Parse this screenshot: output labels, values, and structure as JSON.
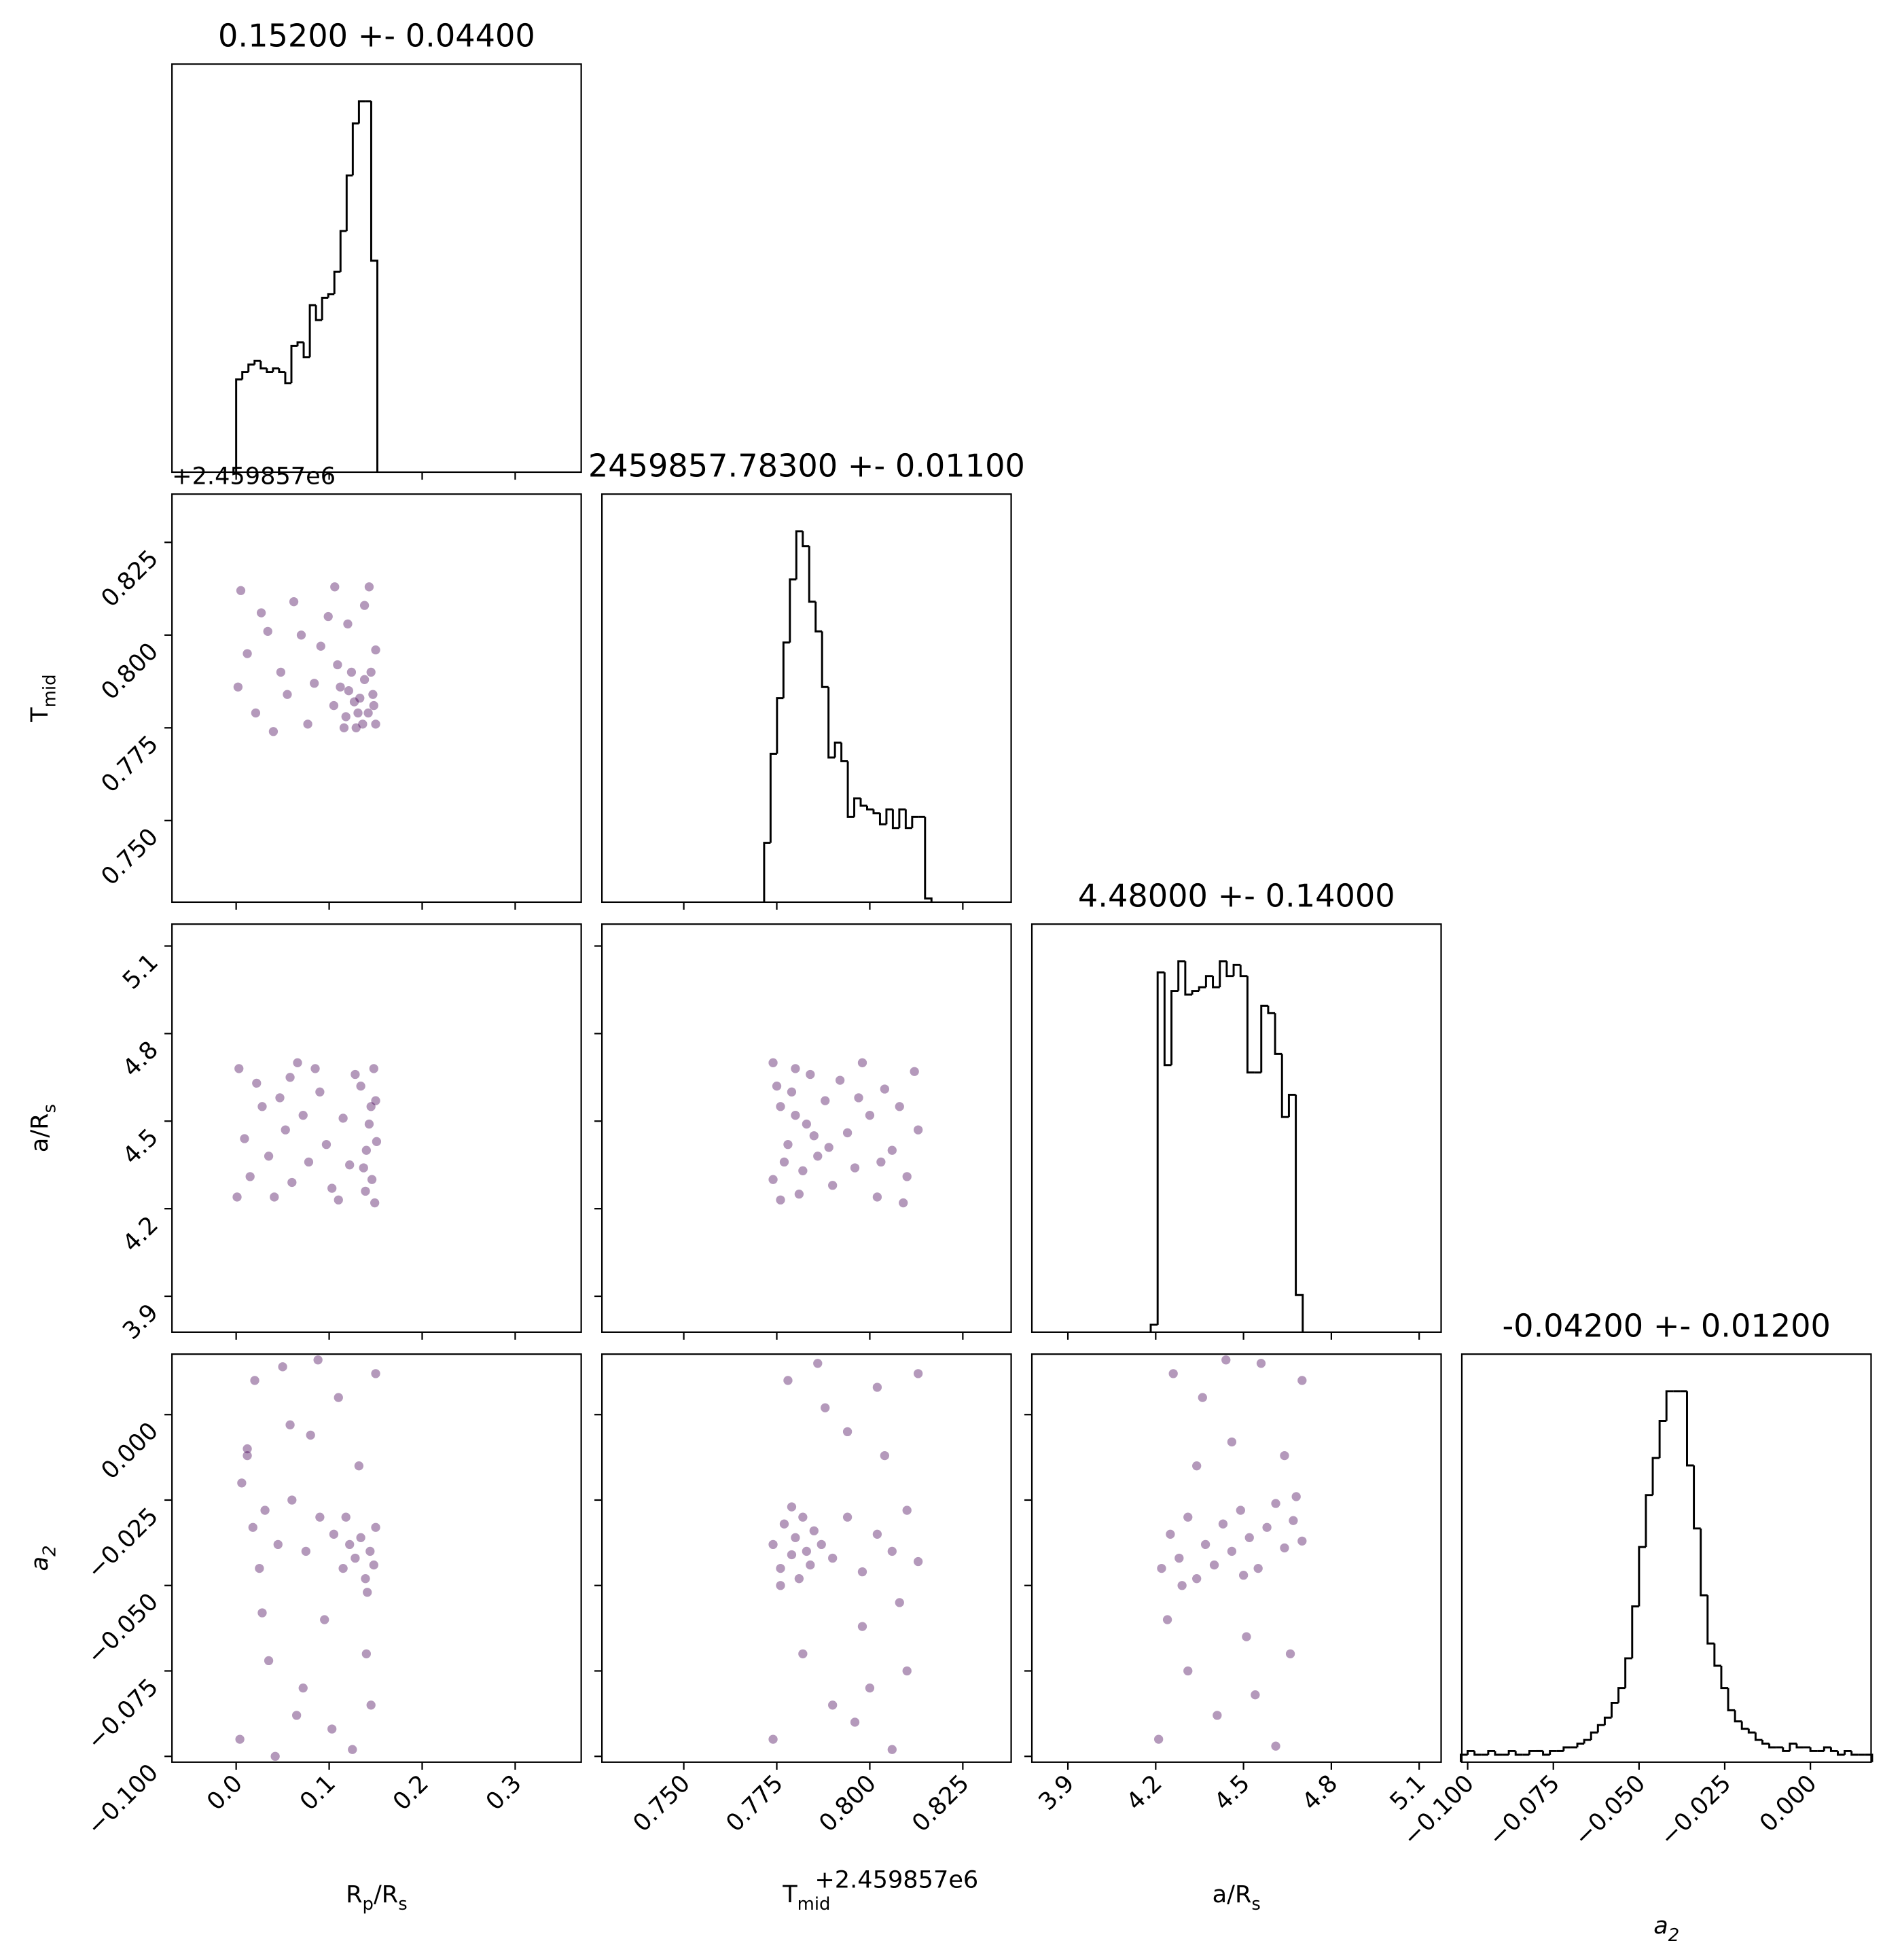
{
  "chart_data": {
    "type": "corner",
    "hist_color": "#000000",
    "scatter_color": "#440154",
    "parameters": [
      {
        "label": [
          "R",
          "p",
          "/R",
          "s"
        ],
        "title": "0.15200 +- 0.04400",
        "lim": [
          -0.069,
          0.371
        ],
        "ticks": [
          {
            "value": 0,
            "label": "0.0"
          },
          0.1,
          0.2,
          0.3
        ],
        "hist_ylim": [
          0,
          110
        ],
        "bins": [
          0,
          0.0066,
          0.0132,
          0.0198,
          0.0264,
          0.033,
          0.0396,
          0.0462,
          0.0528,
          0.0594,
          0.066,
          0.0726,
          0.0792,
          0.0858,
          0.0924,
          0.099,
          0.1056,
          0.1122,
          0.1188,
          0.1254,
          0.132,
          0.1386,
          0.1452,
          0.1518
        ],
        "counts": [
          25,
          27,
          29,
          30,
          28,
          27,
          28,
          27,
          24,
          34,
          35,
          31,
          45,
          41,
          47,
          48,
          54,
          65,
          80,
          94,
          100,
          100,
          57
        ]
      },
      {
        "label": [
          "T",
          "mid"
        ],
        "title": "2459857.78300 +- 0.01100",
        "offset_label": "+2.459857e6",
        "lim": [
          0.728,
          0.838
        ],
        "ticks": [
          {
            "value": 0.75,
            "label": "0.750"
          },
          0.775,
          {
            "value": 0.8,
            "label": "0.800"
          },
          0.825
        ],
        "hist_ylim": [
          0,
          110
        ],
        "bins": [
          0.7716,
          0.77333,
          0.77506,
          0.77679,
          0.77852,
          0.78025,
          0.78198,
          0.78371,
          0.78544,
          0.78717,
          0.7889,
          0.79063,
          0.79236,
          0.79409,
          0.79582,
          0.79755,
          0.79928,
          0.80101,
          0.80274,
          0.80447,
          0.8062,
          0.80793,
          0.80966,
          0.81139,
          0.81312,
          0.81485,
          0.81658
        ],
        "counts": [
          16,
          40,
          55,
          70,
          87,
          100,
          96,
          81,
          73,
          58,
          39,
          43,
          38,
          23,
          28,
          26,
          25,
          24,
          21,
          25,
          20,
          25,
          20,
          23,
          23,
          1
        ]
      },
      {
        "label": [
          "a/R",
          "s"
        ],
        "title": "4.48000 +- 0.14000",
        "lim": [
          3.777,
          5.175
        ],
        "ticks": [
          3.9,
          4.2,
          4.5,
          4.8,
          5.1
        ],
        "hist_ylim": [
          0,
          110
        ],
        "bins": [
          4.183,
          4.2066,
          4.2302,
          4.2538,
          4.2774,
          4.301,
          4.3246,
          4.3482,
          4.3718,
          4.3954,
          4.419,
          4.4426,
          4.4662,
          4.4898,
          4.5134,
          4.537,
          4.5606,
          4.5842,
          4.6078,
          4.6314,
          4.655,
          4.6786,
          4.7022
        ],
        "counts": [
          2,
          97,
          72,
          92,
          100,
          91,
          92,
          93,
          96,
          93,
          100,
          96,
          99,
          96,
          70,
          70,
          88,
          86,
          75,
          58,
          64,
          10
        ]
      },
      {
        "label": [
          "a",
          "2"
        ],
        "label_style": "italic",
        "title": "-0.04200 +- 0.01200",
        "lim": [
          -0.1017,
          0.0177
        ],
        "ticks": [
          {
            "value": -0.1,
            "label": "−0.100"
          },
          {
            "value": -0.075,
            "label": "−0.075"
          },
          {
            "value": -0.05,
            "label": "−0.050"
          },
          {
            "value": -0.025,
            "label": "−0.025"
          },
          {
            "value": 0,
            "label": "0.000"
          }
        ],
        "hist_ylim": [
          0,
          110
        ],
        "bins": [
          -0.102,
          -0.1,
          -0.098,
          -0.096,
          -0.094,
          -0.092,
          -0.09,
          -0.088,
          -0.086,
          -0.084,
          -0.082,
          -0.08,
          -0.078,
          -0.076,
          -0.074,
          -0.072,
          -0.07,
          -0.068,
          -0.066,
          -0.064,
          -0.062,
          -0.06,
          -0.058,
          -0.056,
          -0.054,
          -0.052,
          -0.05,
          -0.048,
          -0.046,
          -0.044,
          -0.042,
          -0.04,
          -0.038,
          -0.036,
          -0.034,
          -0.032,
          -0.03,
          -0.028,
          -0.026,
          -0.024,
          -0.022,
          -0.02,
          -0.018,
          -0.016,
          -0.014,
          -0.012,
          -0.01,
          -0.008,
          -0.006,
          -0.004,
          -0.002,
          0,
          0.002,
          0.004,
          0.006,
          0.008,
          0.01,
          0.012,
          0.014,
          0.016,
          0.018
        ],
        "counts": [
          2,
          3,
          2,
          2,
          3,
          2,
          2,
          3,
          2,
          2,
          3,
          3,
          2,
          3,
          3,
          4,
          4,
          5,
          6,
          8,
          10,
          12,
          16,
          20,
          28,
          42,
          58,
          72,
          82,
          92,
          100,
          100,
          100,
          80,
          63,
          45,
          32,
          26,
          20,
          14,
          11,
          9,
          8,
          6,
          5,
          4,
          4,
          3,
          5,
          4,
          4,
          3,
          3,
          4,
          3,
          2,
          3,
          2,
          2,
          2
        ]
      }
    ],
    "scatter": [
      [
        {
          "x": [
            0.005,
            0.021,
            0.034,
            0.048,
            0.062,
            0.077,
            0.091,
            0.106,
            0.12,
            0.138,
            0.15,
            0.012,
            0.027,
            0.055,
            0.07,
            0.084,
            0.099,
            0.143,
            0.002,
            0.04,
            0.105,
            0.112,
            0.118,
            0.124,
            0.129,
            0.133,
            0.138,
            0.142,
            0.147,
            0.15,
            0.109,
            0.116,
            0.127,
            0.136,
            0.145,
            0.121,
            0.131,
            0.148
          ],
          "y": [
            0.812,
            0.779,
            0.801,
            0.79,
            0.809,
            0.776,
            0.797,
            0.813,
            0.803,
            0.808,
            0.796,
            0.795,
            0.806,
            0.784,
            0.8,
            0.787,
            0.805,
            0.813,
            0.786,
            0.774,
            0.781,
            0.786,
            0.778,
            0.79,
            0.775,
            0.783,
            0.788,
            0.779,
            0.784,
            0.776,
            0.792,
            0.775,
            0.782,
            0.776,
            0.79,
            0.785,
            0.779,
            0.781
          ]
        }
      ],
      [
        {
          "x": [
            0.003,
            0.015,
            0.028,
            0.041,
            0.053,
            0.066,
            0.078,
            0.09,
            0.103,
            0.115,
            0.128,
            0.14,
            0.15,
            0.009,
            0.022,
            0.035,
            0.047,
            0.06,
            0.072,
            0.085,
            0.097,
            0.11,
            0.122,
            0.134,
            0.146,
            0.143,
            0.148,
            0.139,
            0.151,
            0.145,
            0.137,
            0.149,
            0.001,
            0.058
          ],
          "y": [
            4.68,
            4.31,
            4.55,
            4.24,
            4.47,
            4.7,
            4.36,
            4.6,
            4.27,
            4.51,
            4.66,
            4.4,
            4.57,
            4.44,
            4.63,
            4.38,
            4.58,
            4.29,
            4.52,
            4.68,
            4.42,
            4.23,
            4.35,
            4.62,
            4.3,
            4.49,
            4.68,
            4.26,
            4.43,
            4.55,
            4.34,
            4.22,
            4.24,
            4.65
          ]
        },
        {
          "x": [
            0.774,
            0.776,
            0.778,
            0.78,
            0.781,
            0.783,
            0.775,
            0.777,
            0.779,
            0.782,
            0.784,
            0.785,
            0.776,
            0.78,
            0.786,
            0.788,
            0.79,
            0.792,
            0.794,
            0.796,
            0.798,
            0.8,
            0.802,
            0.804,
            0.806,
            0.808,
            0.81,
            0.812,
            0.813,
            0.789,
            0.797,
            0.803,
            0.809,
            0.774
          ],
          "y": [
            4.3,
            4.55,
            4.42,
            4.68,
            4.25,
            4.49,
            4.62,
            4.36,
            4.6,
            4.33,
            4.66,
            4.45,
            4.23,
            4.52,
            4.38,
            4.57,
            4.28,
            4.64,
            4.46,
            4.34,
            4.7,
            4.52,
            4.24,
            4.61,
            4.4,
            4.55,
            4.31,
            4.67,
            4.47,
            4.41,
            4.58,
            4.36,
            4.22,
            4.7
          ]
        }
      ],
      [
        {
          "x": [
            0.004,
            0.02,
            0.035,
            0.05,
            0.065,
            0.08,
            0.095,
            0.11,
            0.125,
            0.14,
            0.15,
            0.012,
            0.028,
            0.058,
            0.072,
            0.088,
            0.103,
            0.132,
            0.145,
            0.042,
            0.006,
            0.018,
            0.031,
            0.045,
            0.06,
            0.075,
            0.09,
            0.105,
            0.115,
            0.122,
            0.128,
            0.134,
            0.139,
            0.144,
            0.148,
            0.15,
            0.118,
            0.141,
            0.012,
            0.025
          ],
          "y": [
            -0.095,
            0.01,
            -0.072,
            0.014,
            -0.088,
            -0.006,
            -0.06,
            0.005,
            -0.098,
            -0.07,
            0.012,
            -0.012,
            -0.058,
            -0.003,
            -0.08,
            0.016,
            -0.092,
            -0.015,
            -0.085,
            -0.1,
            -0.02,
            -0.033,
            -0.028,
            -0.038,
            -0.025,
            -0.04,
            -0.03,
            -0.035,
            -0.045,
            -0.038,
            -0.042,
            -0.036,
            -0.048,
            -0.04,
            -0.044,
            -0.033,
            -0.03,
            -0.052,
            -0.01,
            -0.045
          ]
        },
        {
          "x": [
            0.774,
            0.778,
            0.782,
            0.786,
            0.79,
            0.794,
            0.798,
            0.802,
            0.806,
            0.81,
            0.813,
            0.788,
            0.796,
            0.804,
            0.808,
            0.8,
            0.774,
            0.776,
            0.777,
            0.779,
            0.78,
            0.781,
            0.782,
            0.783,
            0.785,
            0.776,
            0.779,
            0.784,
            0.787,
            0.79,
            0.794,
            0.798,
            0.802,
            0.806,
            0.81,
            0.813
          ],
          "y": [
            -0.095,
            0.01,
            -0.07,
            0.015,
            -0.085,
            -0.005,
            -0.062,
            0.008,
            -0.098,
            -0.075,
            0.012,
            0.002,
            -0.09,
            -0.012,
            -0.055,
            -0.08,
            -0.038,
            -0.045,
            -0.032,
            -0.041,
            -0.036,
            -0.048,
            -0.03,
            -0.04,
            -0.034,
            -0.05,
            -0.027,
            -0.044,
            -0.038,
            -0.042,
            -0.03,
            -0.046,
            -0.035,
            -0.04,
            -0.028,
            -0.043
          ]
        },
        {
          "x": [
            4.21,
            4.26,
            4.31,
            4.36,
            4.41,
            4.46,
            4.51,
            4.56,
            4.61,
            4.66,
            4.7,
            4.24,
            4.34,
            4.44,
            4.54,
            4.64,
            4.22,
            4.25,
            4.28,
            4.31,
            4.34,
            4.37,
            4.4,
            4.43,
            4.46,
            4.49,
            4.52,
            4.55,
            4.58,
            4.61,
            4.64,
            4.67,
            4.7,
            4.29,
            4.5,
            4.68
          ],
          "y": [
            -0.095,
            0.012,
            -0.075,
            0.005,
            -0.088,
            -0.008,
            -0.065,
            0.015,
            -0.097,
            -0.07,
            0.01,
            -0.06,
            -0.015,
            0.016,
            -0.082,
            -0.012,
            -0.045,
            -0.035,
            -0.042,
            -0.03,
            -0.048,
            -0.038,
            -0.044,
            -0.032,
            -0.04,
            -0.028,
            -0.036,
            -0.045,
            -0.033,
            -0.026,
            -0.039,
            -0.031,
            -0.037,
            -0.05,
            -0.047,
            -0.024
          ]
        }
      ]
    ]
  }
}
